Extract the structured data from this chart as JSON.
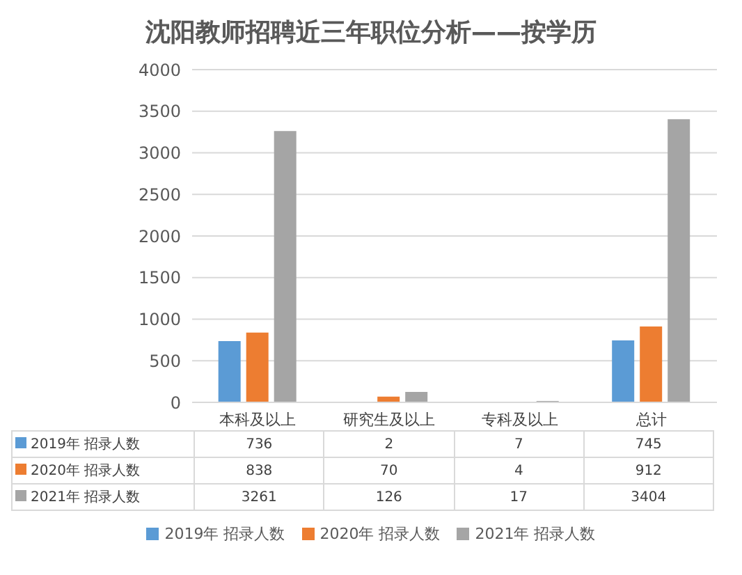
{
  "chart_data": {
    "type": "bar",
    "title": "沈阳教师招聘近三年职位分析——按学历",
    "categories": [
      "本科及以上",
      "研究生及以上",
      "专科及以上",
      "总计"
    ],
    "series": [
      {
        "name": "2019年 招录人数",
        "color": "#5b9bd5",
        "values": [
          736,
          2,
          7,
          745
        ]
      },
      {
        "name": "2020年 招录人数",
        "color": "#ed7d31",
        "values": [
          838,
          70,
          4,
          912
        ]
      },
      {
        "name": "2021年 招录人数",
        "color": "#a5a5a5",
        "values": [
          3261,
          126,
          17,
          3404
        ]
      }
    ],
    "ylim": [
      0,
      4000
    ],
    "yticks": [
      0,
      500,
      1000,
      1500,
      2000,
      2500,
      3000,
      3500,
      4000
    ],
    "grid": "y",
    "legend": "bottom",
    "data_labels": true
  }
}
